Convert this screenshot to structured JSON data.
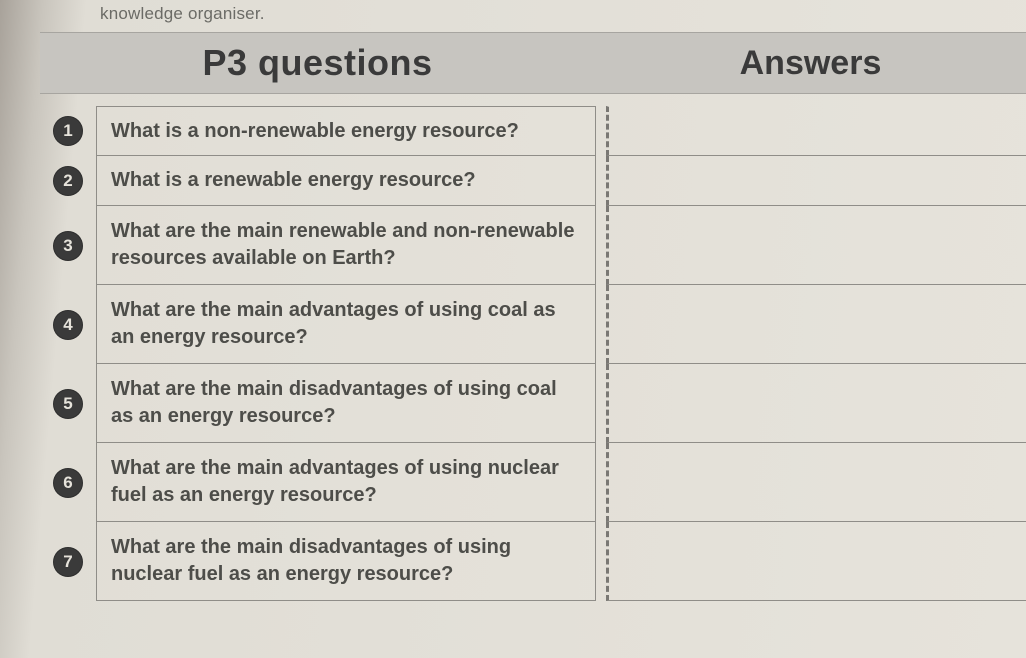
{
  "top_text": "knowledge organiser.",
  "header": {
    "questions_title": "P3 questions",
    "answers_title": "Answers"
  },
  "colors": {
    "page_bg_left": "#a8a29a",
    "page_bg_right": "#e6e3db",
    "header_bg": "#c7c5c0",
    "badge_bg": "#3a3a3a",
    "badge_fg": "#e6e3db",
    "border": "#8f8d88",
    "dash": "#7a7874",
    "text": "#4d4d49"
  },
  "typography": {
    "header_fontsize_pt": 27,
    "body_fontsize_pt": 15,
    "body_weight": 600,
    "font_family": "Arial"
  },
  "questions": [
    {
      "n": "1",
      "text": "What is a non-renewable energy resource?",
      "tall": false
    },
    {
      "n": "2",
      "text": "What is a renewable energy resource?",
      "tall": false
    },
    {
      "n": "3",
      "text": "What are the main renewable and non-renewable resources available on Earth?",
      "tall": true
    },
    {
      "n": "4",
      "text": "What are the main advantages of using coal as an energy resource?",
      "tall": true
    },
    {
      "n": "5",
      "text": "What are the main disadvantages of using coal as an energy resource?",
      "tall": true
    },
    {
      "n": "6",
      "text": "What are the main advantages of using nuclear fuel as an energy resource?",
      "tall": true
    },
    {
      "n": "7",
      "text": "What are the main disadvantages of using nuclear fuel as an energy resource?",
      "tall": true
    }
  ]
}
